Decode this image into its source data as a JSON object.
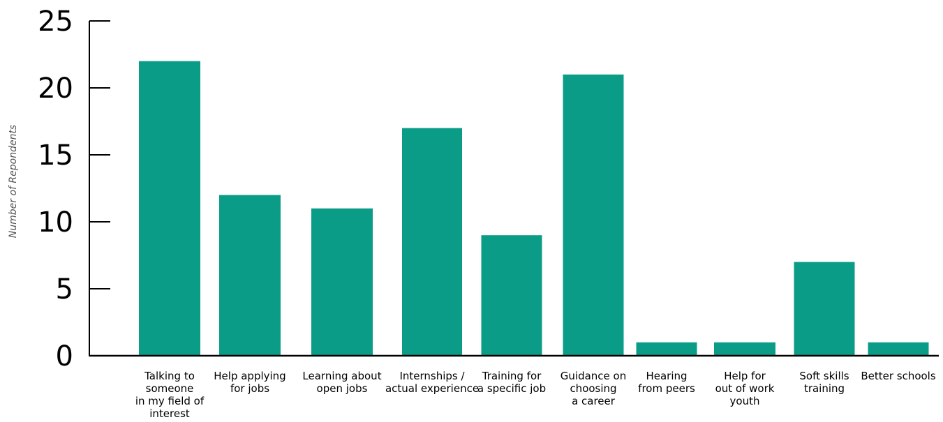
{
  "chart_data": {
    "type": "bar",
    "title": "",
    "xlabel": "",
    "ylabel": "Number of Repondents",
    "ylim": [
      0,
      25
    ],
    "yticks": [
      0,
      5,
      10,
      15,
      20,
      25
    ],
    "grid": false,
    "legend": "none",
    "bar_color": "#0b9c87",
    "categories": [
      [
        "Talking to",
        "someone",
        "in my field of",
        "interest"
      ],
      [
        "Help applying",
        "for jobs"
      ],
      [
        "Learning about",
        "open jobs"
      ],
      [
        "Internships /",
        "actual experience"
      ],
      [
        "Training for",
        "a specific job"
      ],
      [
        "Guidance on",
        "choosing",
        "a career"
      ],
      [
        "Hearing",
        "from peers"
      ],
      [
        "Help for",
        "out of work",
        "youth"
      ],
      [
        "Soft skills",
        "training"
      ],
      [
        "Better schools"
      ]
    ],
    "values": [
      22,
      12,
      11,
      17,
      9,
      21,
      1,
      1,
      7,
      1
    ]
  }
}
